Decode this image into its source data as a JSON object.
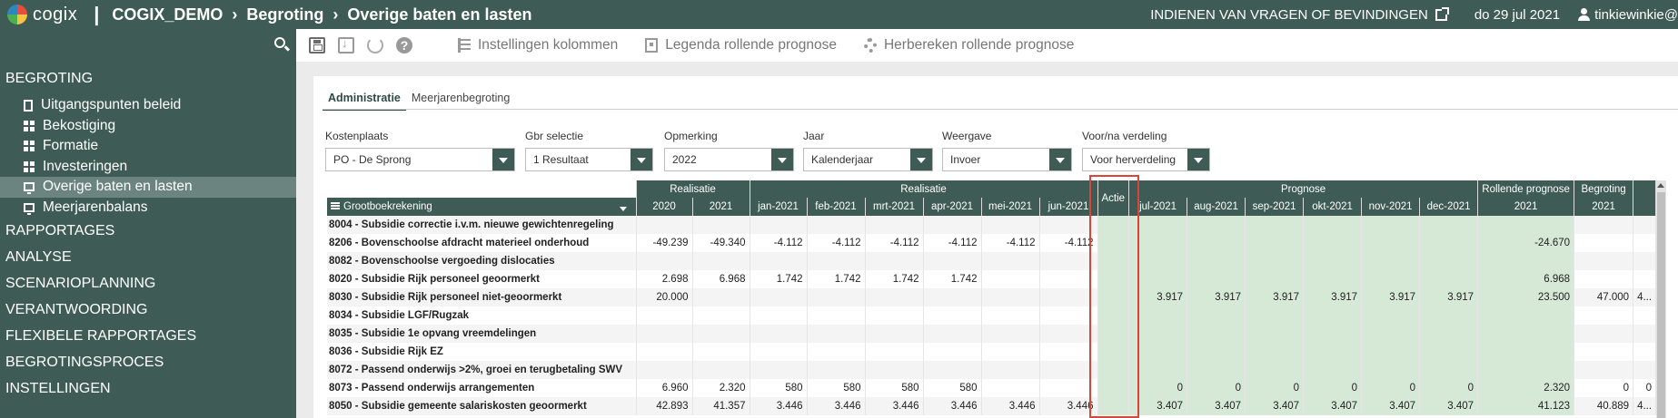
{
  "app": {
    "logo_text": "cogix"
  },
  "breadcrumb": {
    "items": [
      "COGIX_DEMO",
      "Begroting",
      "Overige baten en lasten"
    ]
  },
  "header": {
    "report_link": "INDIENEN VAN VRAGEN OF BEVINDINGEN",
    "date": "do 29 jul 2021",
    "user": "tinkiewinkie@"
  },
  "sidebar": {
    "section_top": "BEGROTING",
    "items": [
      {
        "label": "Uitgangspunten beleid",
        "icon": "document-icon"
      },
      {
        "label": "Bekostiging",
        "icon": "grid-icon"
      },
      {
        "label": "Formatie",
        "icon": "grid-icon"
      },
      {
        "label": "Investeringen",
        "icon": "grid-icon"
      },
      {
        "label": "Overige baten en lasten",
        "icon": "monitor-icon",
        "active": true
      },
      {
        "label": "Meerjarenbalans",
        "icon": "monitor-icon"
      }
    ],
    "sections": [
      "RAPPORTAGES",
      "ANALYSE",
      "SCENARIOPLANNING",
      "VERANTWOORDING",
      "FLEXIBELE RAPPORTAGES",
      "BEGROTINGSPROCES",
      "INSTELLINGEN"
    ]
  },
  "toolbar": {
    "columns_label": "Instellingen kolommen",
    "legend_label": "Legenda rollende prognose",
    "recalc_label": "Herbereken rollende prognose"
  },
  "tabs": [
    "Administratie",
    "Meerjarenbegroting"
  ],
  "filters": {
    "kostenplaats": {
      "label": "Kostenplaats",
      "value": "PO - De Sprong"
    },
    "gbr": {
      "label": "Gbr selectie",
      "value": "1 Resultaat"
    },
    "opmerking": {
      "label": "Opmerking",
      "value": "2022"
    },
    "jaar": {
      "label": "Jaar",
      "value": "Kalenderjaar"
    },
    "weergave": {
      "label": "Weergave",
      "value": "Invoer"
    },
    "verdeling": {
      "label": "Voor/na verdeling",
      "value": "Voor herverdeling"
    }
  },
  "grid": {
    "group_headers": {
      "realisatie_years": "Realisatie",
      "realisatie_months": "Realisatie",
      "prognose": "Prognose",
      "rollend": "Rollende prognose",
      "begroting": "Begroting"
    },
    "first_column": "Grootboekrekening",
    "actie": "Actie",
    "columns": [
      "2020",
      "2021",
      "jan-2021",
      "feb-2021",
      "mrt-2021",
      "apr-2021",
      "mei-2021",
      "jun-2021",
      "jul-2021",
      "aug-2021",
      "sep-2021",
      "okt-2021",
      "nov-2021",
      "dec-2021",
      "2021",
      "2021"
    ],
    "rows": [
      {
        "name": "8004 - Subsidie correctie i.v.m. nieuwe gewichtenregeling",
        "values": [
          "",
          "",
          "",
          "",
          "",
          "",
          "",
          "",
          "",
          "",
          "",
          "",
          "",
          "",
          "",
          ""
        ]
      },
      {
        "name": "8206 - Bovenschoolse afdracht materieel onderhoud",
        "values": [
          "-49.239",
          "-49.340",
          "-4.112",
          "-4.112",
          "-4.112",
          "-4.112",
          "-4.112",
          "-4.112",
          "",
          "",
          "",
          "",
          "",
          "",
          "-24.670",
          ""
        ]
      },
      {
        "name": "8082 - Bovenschoolse vergoeding dislocaties",
        "values": [
          "",
          "",
          "",
          "",
          "",
          "",
          "",
          "",
          "",
          "",
          "",
          "",
          "",
          "",
          "",
          ""
        ]
      },
      {
        "name": "8020 - Subsidie Rijk personeel geoormerkt",
        "values": [
          "2.698",
          "6.968",
          "1.742",
          "1.742",
          "1.742",
          "1.742",
          "",
          "",
          "",
          "",
          "",
          "",
          "",
          "",
          "6.968",
          ""
        ]
      },
      {
        "name": "8030 - Subsidie Rijk personeel niet-geoormerkt",
        "values": [
          "20.000",
          "",
          "",
          "",
          "",
          "",
          "",
          "",
          "3.917",
          "3.917",
          "3.917",
          "3.917",
          "3.917",
          "3.917",
          "23.500",
          "47.000"
        ],
        "extra": "4..."
      },
      {
        "name": "8034 - Subsidie LGF/Rugzak",
        "values": [
          "",
          "",
          "",
          "",
          "",
          "",
          "",
          "",
          "",
          "",
          "",
          "",
          "",
          "",
          "",
          ""
        ]
      },
      {
        "name": "8035 - Subsidie 1e opvang vreemdelingen",
        "values": [
          "",
          "",
          "",
          "",
          "",
          "",
          "",
          "",
          "",
          "",
          "",
          "",
          "",
          "",
          "",
          ""
        ]
      },
      {
        "name": "8036 - Subsidie Rijk EZ",
        "values": [
          "",
          "",
          "",
          "",
          "",
          "",
          "",
          "",
          "",
          "",
          "",
          "",
          "",
          "",
          "",
          ""
        ]
      },
      {
        "name": "8072 - Passend onderwijs >2%, groei en terugbetaling SWV",
        "values": [
          "",
          "",
          "",
          "",
          "",
          "",
          "",
          "",
          "",
          "",
          "",
          "",
          "",
          "",
          "",
          ""
        ]
      },
      {
        "name": "8073 - Passend onderwijs arrangementen",
        "values": [
          "6.960",
          "2.320",
          "580",
          "580",
          "580",
          "580",
          "",
          "",
          "0",
          "0",
          "0",
          "0",
          "0",
          "0",
          "2.320",
          "0"
        ],
        "extra": "0"
      },
      {
        "name": "8050 - Subsidie gemeente salariskosten geoormerkt",
        "values": [
          "42.893",
          "41.357",
          "3.446",
          "3.446",
          "3.446",
          "3.446",
          "3.446",
          "3.446",
          "3.407",
          "3.407",
          "3.407",
          "3.407",
          "3.407",
          "3.407",
          "41.123",
          "40.889"
        ],
        "extra": "4..."
      }
    ]
  }
}
